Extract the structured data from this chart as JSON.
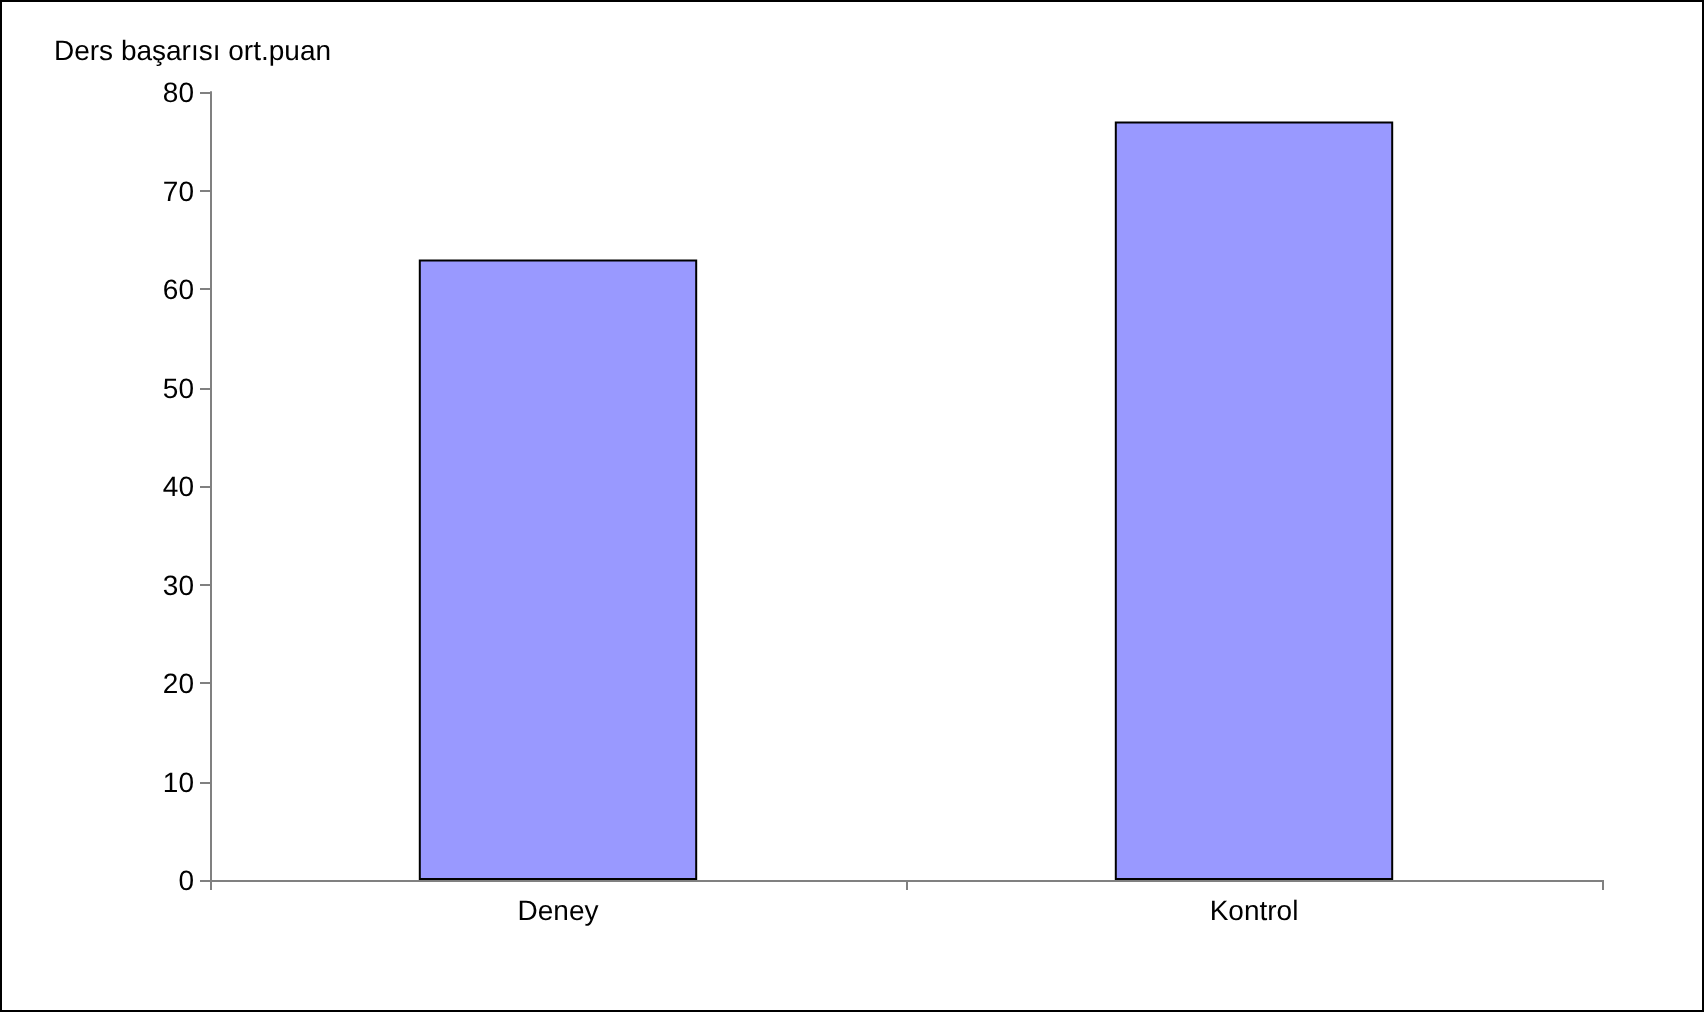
{
  "chart_data": {
    "type": "bar",
    "ylabel": "Ders başarısı ort.puan",
    "categories": [
      "Deney",
      "Kontrol"
    ],
    "values": [
      63,
      77
    ],
    "color": "#9999ff",
    "ylim": [
      0,
      80
    ],
    "yticks": [
      0,
      10,
      20,
      30,
      40,
      50,
      60,
      70,
      80
    ],
    "grid": false
  }
}
